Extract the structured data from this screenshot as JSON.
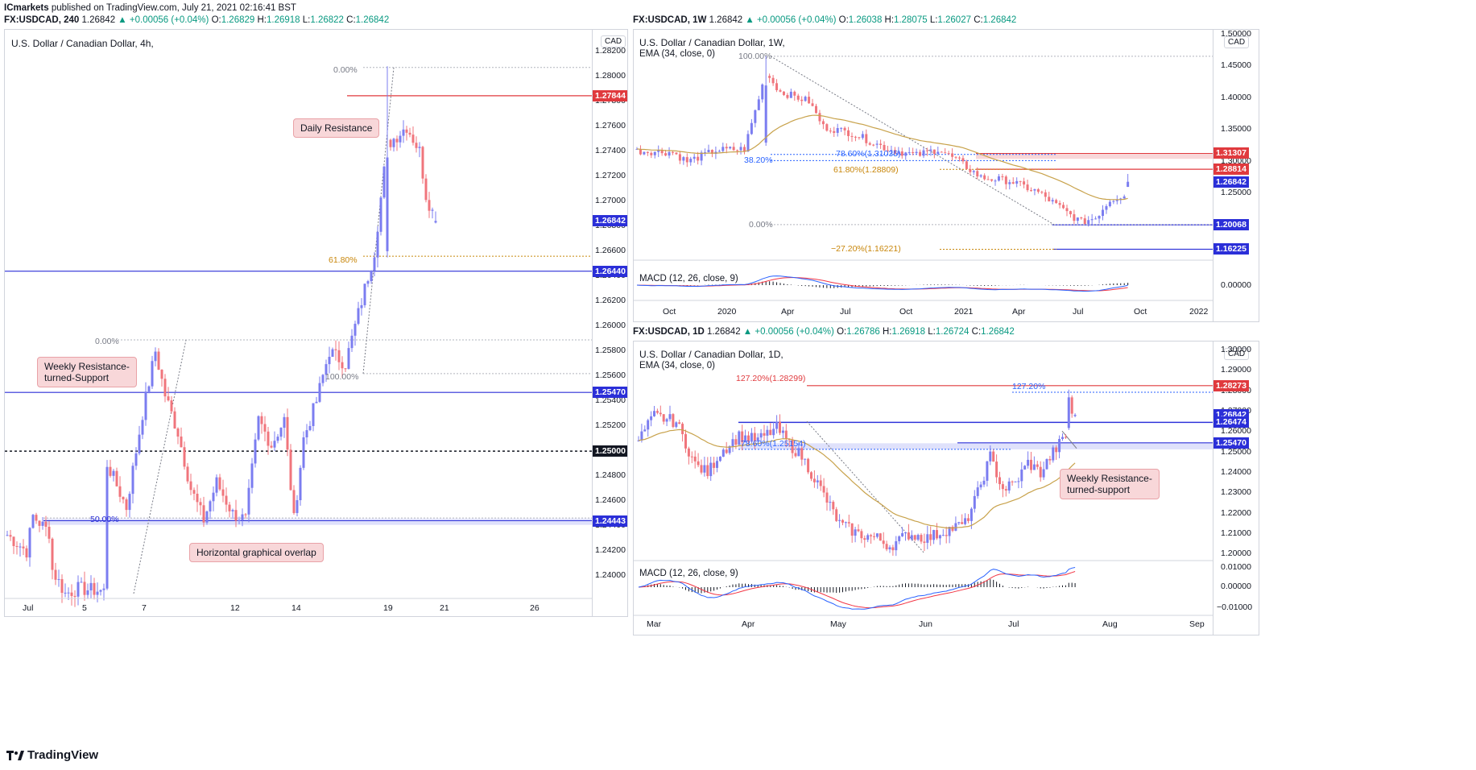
{
  "header": {
    "publisher": "ICmarkets",
    "published_text": "published on TradingView.com, July 21, 2021 02:16:41 BST"
  },
  "colors": {
    "up": "#7b7df0",
    "down": "#f0757c",
    "resistance_red": "#e03a3e",
    "support_blue": "#2b2fd8",
    "fib_orange": "#c8860a",
    "ema": "#c8a24b",
    "macd_line": "#2962ff",
    "signal_line": "#f23645"
  },
  "left": {
    "symbol_line": {
      "symbol": "FX:USDCAD, 240",
      "last": "1.26842",
      "change": "+0.00056 (+0.04%)",
      "o_label": "O:",
      "o": "1.26829",
      "h_label": "H:",
      "h": "1.26918",
      "l_label": "L:",
      "l": "1.26822",
      "c_label": "C:",
      "c": "1.26842"
    },
    "title": "U.S. Dollar / Canadian Dollar, 4h,",
    "currency": "CAD",
    "y_ticks": [
      "1.28200",
      "1.28000",
      "1.27800",
      "1.27600",
      "1.27400",
      "1.27200",
      "1.27000",
      "1.26800",
      "1.26600",
      "1.26400",
      "1.26200",
      "1.26000",
      "1.25800",
      "1.25600",
      "1.25400",
      "1.25200",
      "1.25000",
      "1.24800",
      "1.24600",
      "1.24400",
      "1.24200",
      "1.24000"
    ],
    "x_ticks": [
      "Jul",
      "5",
      "7",
      "12",
      "14",
      "19",
      "21",
      "26"
    ],
    "price_boxes": [
      {
        "value": "1.27844",
        "color": "#e03a3e"
      },
      {
        "value": "1.26842",
        "color": "#2b2fd8"
      },
      {
        "value": "1.26440",
        "color": "#2b2fd8"
      },
      {
        "value": "1.25470",
        "color": "#2b2fd8"
      },
      {
        "value": "1.25000",
        "color": "#131722"
      },
      {
        "value": "1.24443",
        "color": "#2b2fd8"
      }
    ],
    "fib_labels": {
      "top": "0.00%",
      "mid": "61.80%",
      "second": "0.00%",
      "hundred": "100.00%",
      "fifty": "50.00%"
    },
    "callouts": {
      "daily_resistance": "Daily Resistance",
      "weekly_support": [
        "Weekly Resistance-",
        "turned-Support"
      ],
      "overlap": "Horizontal graphical overlap"
    },
    "chart_data": {
      "type": "candlestick",
      "timeframe": "4h",
      "levels": {
        "daily_resistance": 1.27844,
        "last": 1.26842,
        "support_1": 1.2644,
        "weekly_support": 1.2547,
        "round_number": 1.25,
        "overlap": 1.24443
      },
      "ylim": [
        1.2386,
        1.2832
      ]
    }
  },
  "weekly": {
    "symbol_line": {
      "symbol": "FX:USDCAD, 1W",
      "last": "1.26842",
      "change": "+0.00056 (+0.04%)",
      "o_label": "O:",
      "o": "1.26038",
      "h_label": "H:",
      "h": "1.28075",
      "l_label": "L:",
      "l": "1.26027",
      "c_label": "C:",
      "c": "1.26842"
    },
    "title": "U.S. Dollar / Canadian Dollar, 1W,",
    "indicator": "EMA (34, close, 0)",
    "currency": "CAD",
    "y_ticks": [
      "1.50000",
      "1.45000",
      "1.40000",
      "1.35000",
      "1.30000",
      "1.25000"
    ],
    "x_ticks": [
      "Oct",
      "2020",
      "Apr",
      "Jul",
      "Oct",
      "2021",
      "Apr",
      "Jul",
      "Oct",
      "2022"
    ],
    "price_boxes": [
      {
        "value": "1.31307",
        "color": "#e03a3e"
      },
      {
        "value": "1.28814",
        "color": "#e03a3e"
      },
      {
        "value": "1.26842",
        "color": "#2b2fd8"
      },
      {
        "value": "1.20068",
        "color": "#2b2fd8"
      },
      {
        "value": "1.16225",
        "color": "#2b2fd8"
      }
    ],
    "fib_labels": {
      "hundred": "100.00%",
      "r786": "78.60%(1.31035)",
      "r382": "38.20%",
      "r618": "61.80%(1.28809)",
      "zero": "0.00%",
      "ext": "−27.20%(1.16221)"
    },
    "macd_title": "MACD (12, 26, close, 9)",
    "macd_tick": "0.00000",
    "chart_data": {
      "type": "candlestick",
      "timeframe": "1W",
      "levels": {
        "resistance_1": 1.31307,
        "resistance_2": 1.28814,
        "last": 1.26842,
        "support": 1.20068,
        "extension": 1.16225
      },
      "ylim": [
        1.14,
        1.5
      ]
    }
  },
  "daily": {
    "symbol_line": {
      "symbol": "FX:USDCAD, 1D",
      "last": "1.26842",
      "change": "+0.00056 (+0.04%)",
      "o_label": "O:",
      "o": "1.26786",
      "h_label": "H:",
      "h": "1.26918",
      "l_label": "L:",
      "l": "1.26724",
      "c_label": "C:",
      "c": "1.26842"
    },
    "title": "U.S. Dollar / Canadian Dollar, 1D,",
    "indicator": "EMA (34, close, 0)",
    "currency": "CAD",
    "y_ticks": [
      "1.30000",
      "1.29000",
      "1.28000",
      "1.27000",
      "1.26000",
      "1.25000",
      "1.24000",
      "1.23000",
      "1.22000",
      "1.21000",
      "1.20000"
    ],
    "x_ticks": [
      "Mar",
      "Apr",
      "May",
      "Jun",
      "Jul",
      "Aug",
      "Sep"
    ],
    "price_boxes": [
      {
        "value": "1.28273",
        "color": "#e03a3e"
      },
      {
        "value": "1.26842",
        "color": "#2b2fd8"
      },
      {
        "value": "1.26474",
        "color": "#2b2fd8"
      },
      {
        "value": "1.25470",
        "color": "#2b2fd8"
      }
    ],
    "fib_labels": {
      "ext_left": "127.20%(1.28299)",
      "ext_right": "127.20%",
      "r786": "78.60%(1.25154)"
    },
    "callout": [
      "Weekly Resistance-",
      "turned-support"
    ],
    "macd_title": "MACD (12, 26, close, 9)",
    "macd_ticks": [
      "0.01000",
      "0.00000",
      "−0.01000"
    ],
    "chart_data": {
      "type": "candlestick",
      "timeframe": "1D",
      "levels": {
        "extension": 1.28273,
        "last": 1.26842,
        "resistance_support": 1.26474,
        "weekly_support": 1.2547
      },
      "ylim": [
        1.197,
        1.302
      ]
    }
  },
  "footer": {
    "brand": "TradingView"
  }
}
